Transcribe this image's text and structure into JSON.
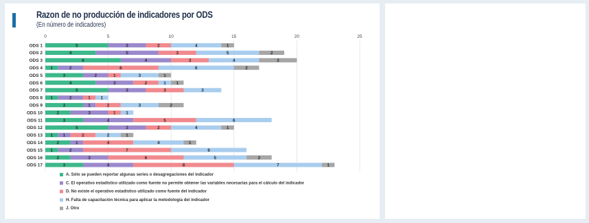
{
  "chart_data": {
    "type": "bar",
    "orientation": "horizontal",
    "stacked": true,
    "title": "Razon de no producción de indicadores por ODS",
    "subtitle": "(En número de indicadores)",
    "xlim": [
      0,
      25
    ],
    "xticks": [
      0,
      5,
      10,
      15,
      20,
      25
    ],
    "grid": true,
    "legend_position": "bottom",
    "categories": [
      "ODS 1",
      "ODS 2",
      "ODS 3",
      "ODS 4",
      "ODS 5",
      "ODS 6",
      "ODS 7",
      "ODS 8",
      "ODS 9",
      "ODS 10",
      "ODS 11",
      "ODS 12",
      "ODS 13",
      "ODS 14",
      "ODS 15",
      "ODS 16",
      "ODS 17"
    ],
    "series": [
      {
        "name": "A. Sólo se pueden reportar algunas series o desagregaciones del indicador",
        "color": "#3cb88b",
        "values": [
          5,
          4,
          6,
          1,
          3,
          4,
          5,
          1,
          3,
          2,
          3,
          5,
          1,
          2,
          1,
          2,
          3
        ]
      },
      {
        "name": "C. El operativo estadístico utilizado como fuente no permite obtener las variables necesarias para el cálculo del indicador",
        "color": "#9b89cc",
        "values": [
          3,
          5,
          4,
          2,
          2,
          3,
          3,
          2,
          1,
          3,
          4,
          3,
          1,
          1,
          2,
          3,
          4
        ]
      },
      {
        "name": "D. No existe el operativo estadístico utilizado como fuente del indicador",
        "color": "#f08a8f",
        "values": [
          2,
          3,
          3,
          6,
          1,
          2,
          3,
          1,
          2,
          1,
          5,
          2,
          2,
          4,
          7,
          6,
          8
        ]
      },
      {
        "name": "H. Falta de capacitación técnica para aplicar la metodología del indicador",
        "color": "#a9cdee",
        "values": [
          4,
          5,
          4,
          6,
          3,
          1,
          3,
          1,
          3,
          1,
          6,
          4,
          2,
          4,
          6,
          5,
          7
        ]
      },
      {
        "name": "J. Otro",
        "color": "#a6a6a6",
        "values": [
          1,
          2,
          3,
          2,
          1,
          1,
          0,
          0,
          2,
          0,
          0,
          1,
          1,
          1,
          0,
          2,
          1
        ]
      }
    ]
  },
  "colors": {
    "accent": "#1a6fa8",
    "title": "#1f2e4a",
    "grid": "#d9d9d9"
  }
}
